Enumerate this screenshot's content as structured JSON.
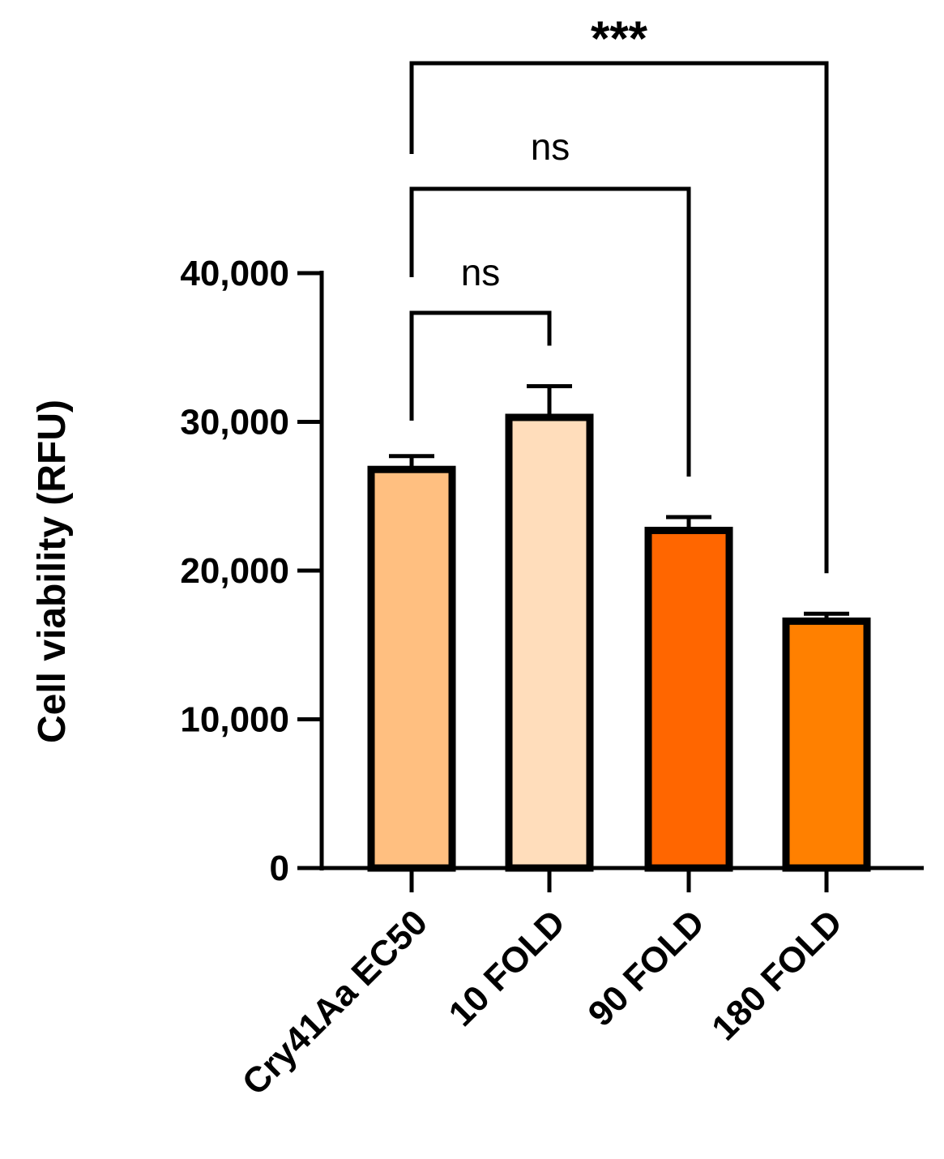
{
  "chart_data": {
    "type": "bar",
    "title": "",
    "xlabel": "",
    "ylabel": "Cell viability (RFU)",
    "ylim": [
      0,
      40000
    ],
    "yticks": [
      {
        "value": 0,
        "label": "0"
      },
      {
        "value": 10000,
        "label": "10,000"
      },
      {
        "value": 20000,
        "label": "20,000"
      },
      {
        "value": 30000,
        "label": "30,000"
      },
      {
        "value": 40000,
        "label": "40,000"
      }
    ],
    "categories": [
      "Cry41Aa EC50",
      "10 FOLD",
      "90 FOLD",
      "180 FOLD"
    ],
    "values": [
      26800,
      30300,
      22700,
      16600
    ],
    "errors": [
      900,
      2100,
      900,
      500
    ],
    "colors": [
      "#FFBF80",
      "#FFDDBB",
      "#FF6600",
      "#FF8000"
    ],
    "grid": false,
    "legend": "none",
    "comparisons": [
      {
        "from": 0,
        "to": 1,
        "label": "ns"
      },
      {
        "from": 0,
        "to": 2,
        "label": "ns"
      },
      {
        "from": 0,
        "to": 3,
        "label": "***"
      }
    ]
  }
}
